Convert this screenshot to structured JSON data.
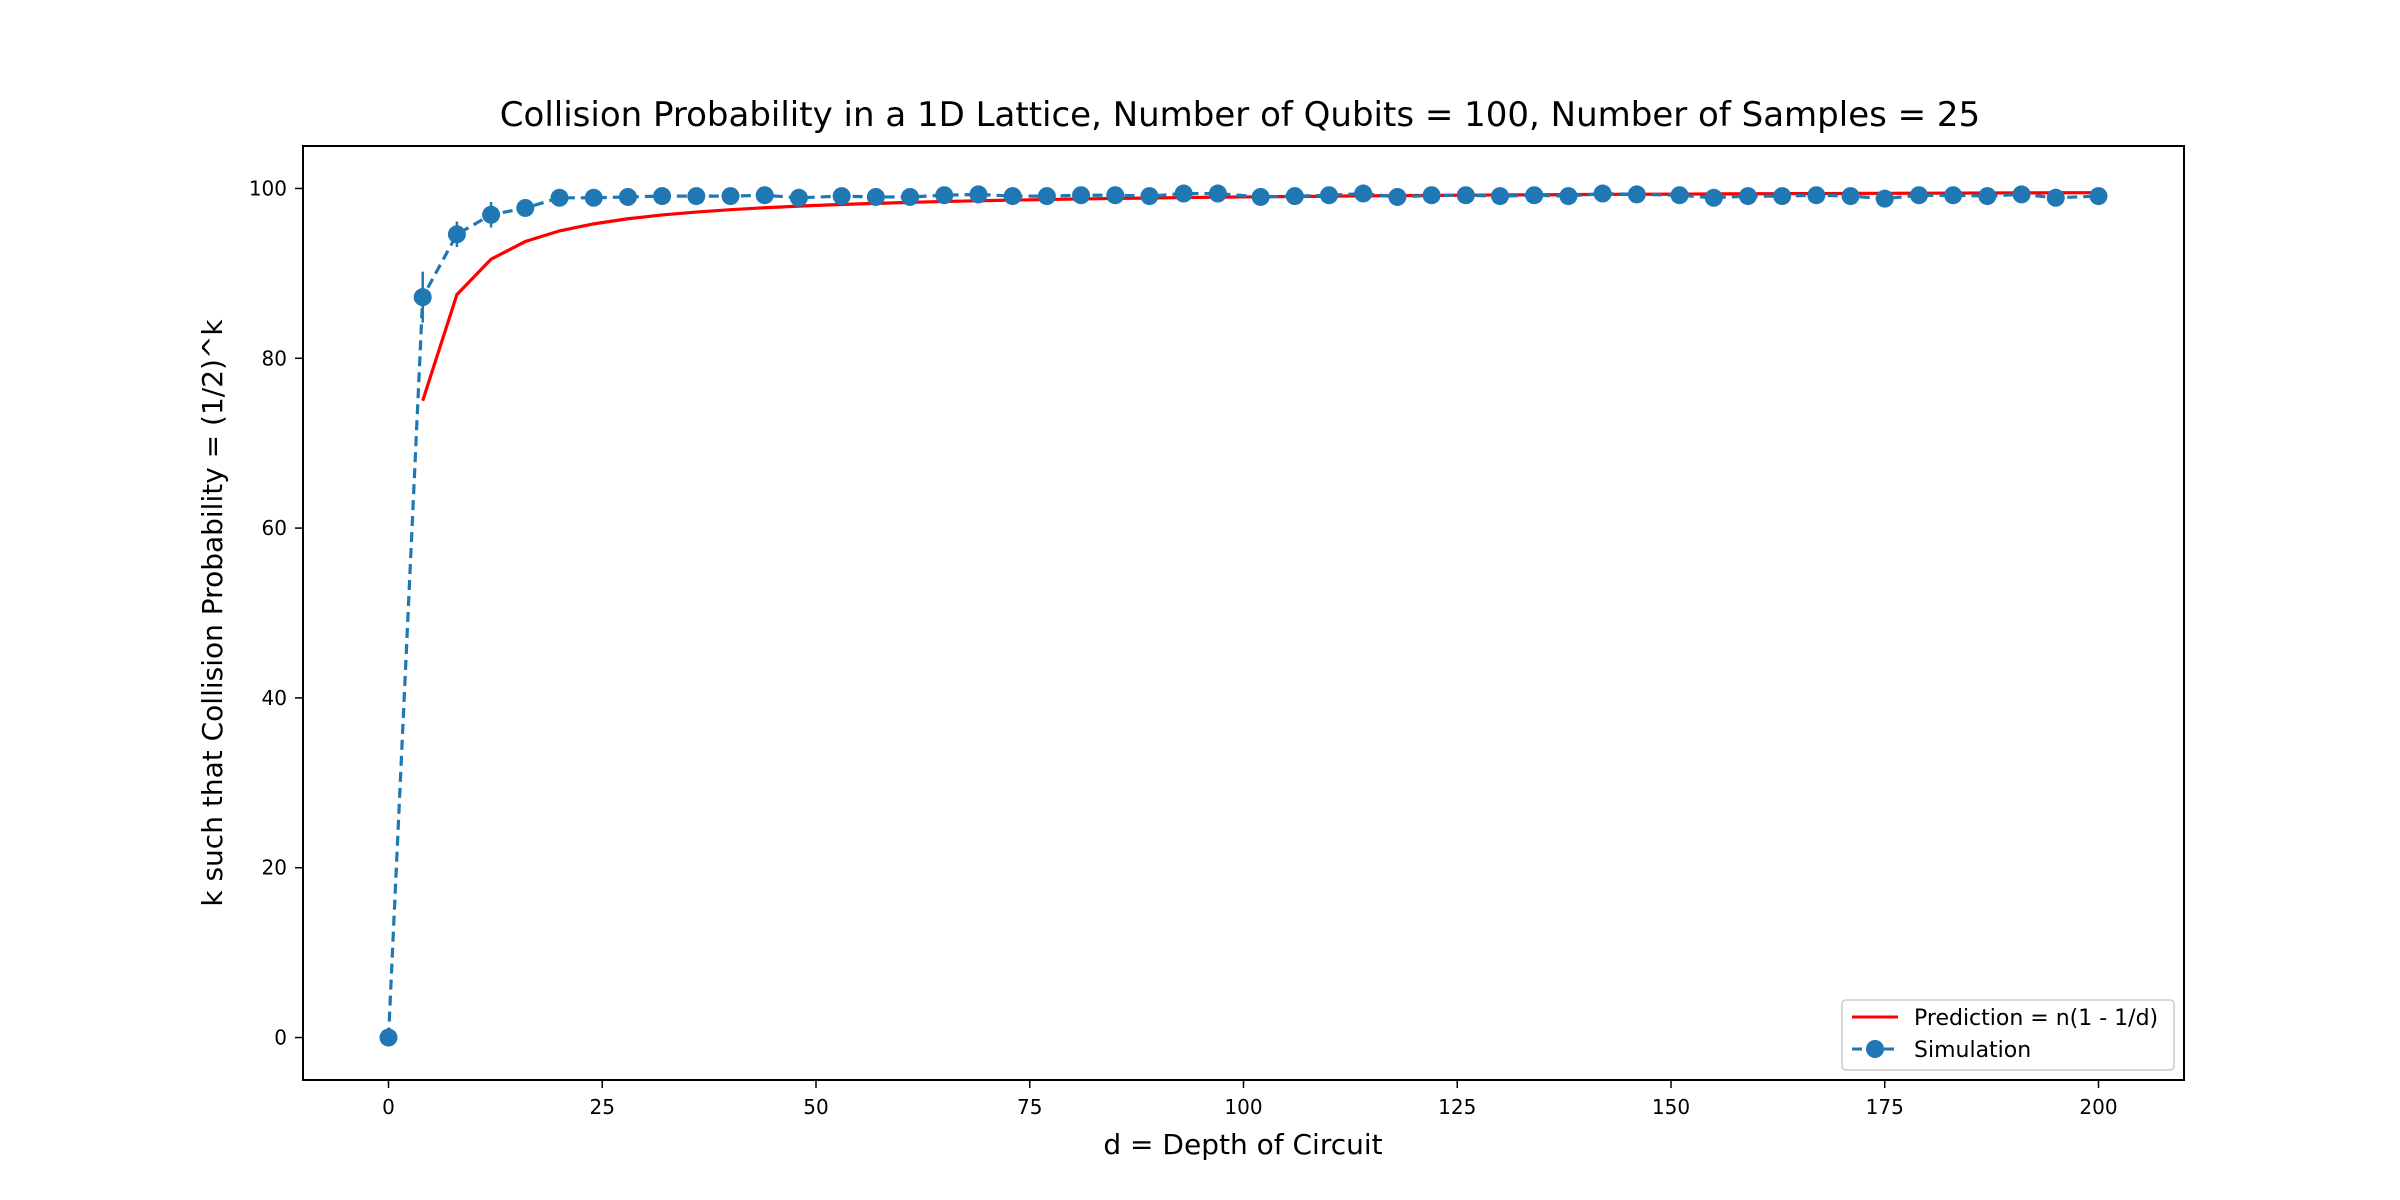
{
  "chart_data": {
    "type": "line",
    "title": "Collision Probability in a 1D Lattice, Number of Qubits = 100, Number of Samples = 25",
    "xlabel": "d = Depth of Circuit",
    "ylabel": "k such that Collision Probability = (1/2)^k",
    "xlim": [
      -10,
      210
    ],
    "ylim": [
      -5,
      105
    ],
    "xticks": [
      0,
      25,
      50,
      75,
      100,
      125,
      150,
      175,
      200
    ],
    "yticks": [
      0,
      20,
      40,
      60,
      80,
      100
    ],
    "grid": false,
    "legend_position": "bottom-right",
    "series": [
      {
        "name": "Prediction = n(1 - 1/d)",
        "color": "#ff0000",
        "style": "solid",
        "x": [
          4,
          8,
          12,
          16,
          20,
          24,
          28,
          32,
          36,
          40,
          44,
          48,
          52,
          56,
          60,
          64,
          68,
          72,
          76,
          80,
          84,
          88,
          92,
          96,
          100,
          104,
          108,
          112,
          116,
          120,
          124,
          128,
          132,
          136,
          140,
          144,
          148,
          152,
          156,
          160,
          164,
          168,
          172,
          176,
          180,
          184,
          188,
          192,
          196,
          200
        ],
        "y": [
          75.0,
          87.5,
          91.67,
          93.75,
          95.0,
          95.83,
          96.43,
          96.88,
          97.22,
          97.5,
          97.73,
          97.92,
          98.08,
          98.21,
          98.33,
          98.44,
          98.53,
          98.61,
          98.68,
          98.75,
          98.81,
          98.86,
          98.91,
          98.96,
          99.0,
          99.04,
          99.07,
          99.11,
          99.14,
          99.17,
          99.19,
          99.22,
          99.24,
          99.26,
          99.29,
          99.31,
          99.32,
          99.34,
          99.36,
          99.38,
          99.39,
          99.4,
          99.42,
          99.43,
          99.44,
          99.46,
          99.47,
          99.48,
          99.49,
          99.5
        ]
      },
      {
        "name": "Simulation",
        "color": "#1f77b4",
        "style": "dashed",
        "marker": "circle",
        "x": [
          0,
          4,
          8,
          12,
          16,
          20,
          24,
          28,
          32,
          36,
          40,
          44,
          48,
          53,
          57,
          61,
          65,
          69,
          73,
          77,
          81,
          85,
          89,
          93,
          97,
          102,
          106,
          110,
          114,
          118,
          122,
          126,
          130,
          134,
          138,
          142,
          146,
          151,
          155,
          159,
          163,
          167,
          171,
          175,
          179,
          183,
          187,
          191,
          195,
          200
        ],
        "y": [
          0,
          87.2,
          94.6,
          96.9,
          97.7,
          98.9,
          98.9,
          99.0,
          99.1,
          99.1,
          99.1,
          99.2,
          98.9,
          99.1,
          99.0,
          99.0,
          99.2,
          99.3,
          99.1,
          99.1,
          99.2,
          99.2,
          99.1,
          99.4,
          99.4,
          99.0,
          99.1,
          99.2,
          99.4,
          99.0,
          99.2,
          99.2,
          99.1,
          99.2,
          99.1,
          99.4,
          99.3,
          99.2,
          98.9,
          99.1,
          99.1,
          99.2,
          99.1,
          98.8,
          99.2,
          99.2,
          99.1,
          99.3,
          98.9,
          99.1
        ],
        "yerr": [
          0,
          3.0,
          1.5,
          1.5,
          0.8,
          0.5,
          0.4,
          0.4,
          0.3,
          0.3,
          0.3,
          0.3,
          0.4,
          0.3,
          0.3,
          0.3,
          0.3,
          0.3,
          0.3,
          0.3,
          0.3,
          0.3,
          0.3,
          0.3,
          0.3,
          0.3,
          0.3,
          0.3,
          0.3,
          0.3,
          0.3,
          0.3,
          0.3,
          0.3,
          0.3,
          0.3,
          0.3,
          0.3,
          0.3,
          0.3,
          0.3,
          0.3,
          0.3,
          0.3,
          0.3,
          0.3,
          0.3,
          0.3,
          0.3,
          0.3
        ]
      }
    ]
  }
}
